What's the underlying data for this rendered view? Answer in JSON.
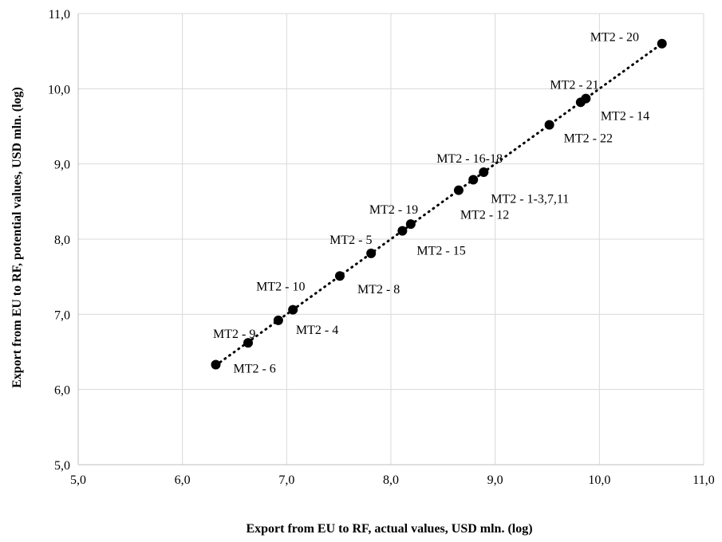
{
  "chart_data": {
    "type": "scatter",
    "title": "",
    "xlabel": "Export from EU to RF, actual values, USD mln. (log)",
    "ylabel": "Export from EU to RF, potential values, USD mln. (log)",
    "xlim": [
      5,
      11
    ],
    "ylim": [
      5,
      11
    ],
    "xticks": [
      "5,0",
      "6,0",
      "7,0",
      "8,0",
      "9,0",
      "10,0",
      "11,0"
    ],
    "yticks": [
      "5,0",
      "6,0",
      "7,0",
      "8,0",
      "9,0",
      "10,0",
      "11,0"
    ],
    "grid": true,
    "trendline": {
      "style": "dotted",
      "type": "linear"
    },
    "points": [
      {
        "label": "MT2 - 6",
        "x": 6.32,
        "y": 6.33
      },
      {
        "label": "MT2 - 9",
        "x": 6.63,
        "y": 6.62
      },
      {
        "label": "MT2 - 4",
        "x": 6.92,
        "y": 6.92
      },
      {
        "label": "MT2 - 10",
        "x": 7.06,
        "y": 7.06
      },
      {
        "label": "MT2 - 8",
        "x": 7.51,
        "y": 7.51
      },
      {
        "label": "MT2 - 5",
        "x": 7.81,
        "y": 7.81
      },
      {
        "label": "MT2 - 15",
        "x": 8.11,
        "y": 8.11
      },
      {
        "label": "MT2 - 19",
        "x": 8.19,
        "y": 8.2
      },
      {
        "label": "MT2 - 12",
        "x": 8.65,
        "y": 8.65
      },
      {
        "label": "MT2 - 1-3,7,11",
        "x": 8.79,
        "y": 8.79
      },
      {
        "label": "MT2 - 16-18",
        "x": 8.89,
        "y": 8.89
      },
      {
        "label": "MT2 - 22",
        "x": 9.52,
        "y": 9.52
      },
      {
        "label": "MT2 - 14",
        "x": 9.82,
        "y": 9.82
      },
      {
        "label": "MT2 - 21",
        "x": 9.87,
        "y": 9.87
      },
      {
        "label": "MT2 - 20",
        "x": 10.6,
        "y": 10.6
      }
    ]
  }
}
